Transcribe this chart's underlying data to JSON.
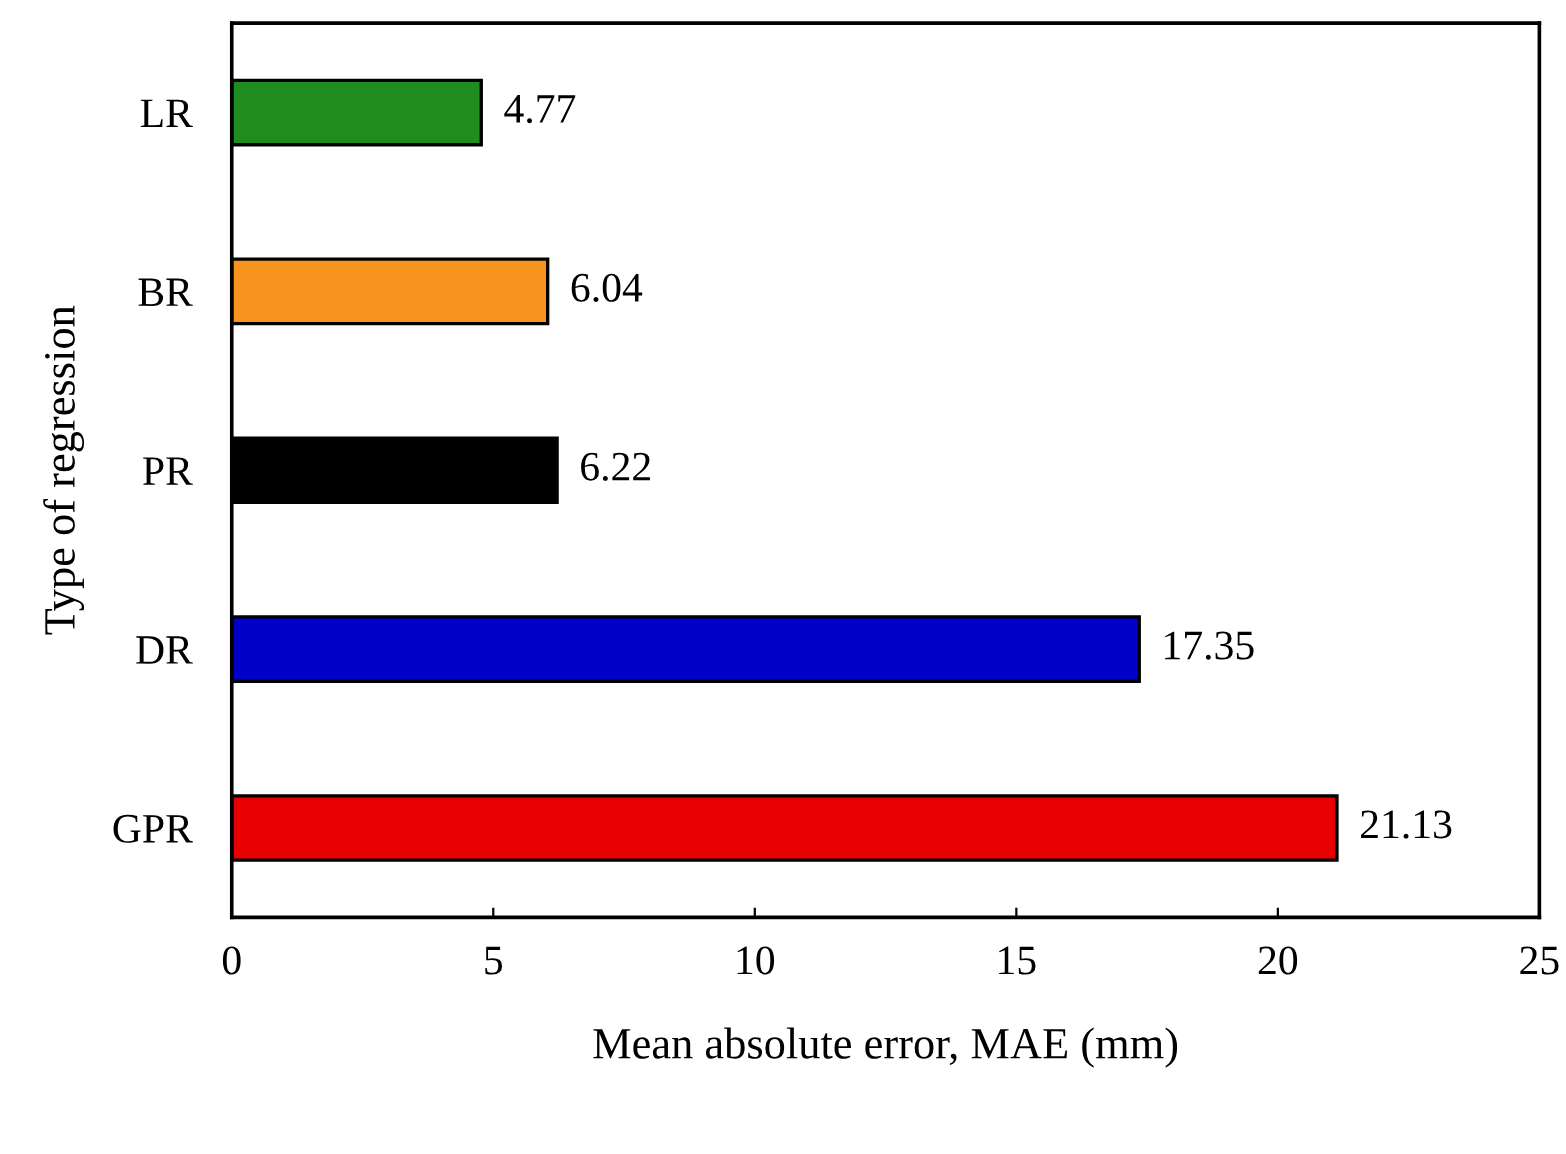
{
  "chart_data": {
    "type": "bar",
    "orientation": "horizontal",
    "xlabel": "Mean absolute error, MAE (mm)",
    "ylabel": "Type of regression",
    "categories": [
      "LR",
      "BR",
      "PR",
      "DR",
      "GPR"
    ],
    "values": [
      4.77,
      6.04,
      6.22,
      17.35,
      21.13
    ],
    "colors": [
      "#1e8c1e",
      "#f7941d",
      "#000000",
      "#0000c8",
      "#e60000"
    ],
    "xlim": [
      0,
      25
    ],
    "xticks": [
      0,
      5,
      10,
      15,
      20,
      25
    ],
    "data_labels": true,
    "grid": false,
    "legend": false
  }
}
